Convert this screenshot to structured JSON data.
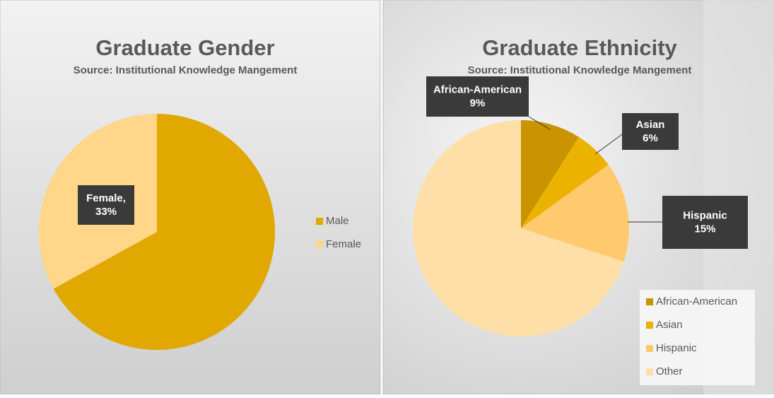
{
  "chart_data": [
    {
      "type": "pie",
      "title": "Graduate Gender",
      "subtitle": "Source: Institutional Knowledge Mangement",
      "categories": [
        "Male",
        "Female"
      ],
      "values": [
        67,
        33
      ],
      "colors": [
        "#e0a800",
        "#ffd68a"
      ],
      "value_labels": [
        null,
        "Female, 33%"
      ],
      "legend": "right"
    },
    {
      "type": "pie",
      "title": "Graduate Ethnicity",
      "subtitle": "Source: Institutional Knowledge Mangement",
      "categories": [
        "African-American",
        "Asian",
        "Hispanic",
        "Other"
      ],
      "values": [
        9,
        6,
        15,
        70
      ],
      "colors": [
        "#c99400",
        "#ebb300",
        "#ffca6e",
        "#ffdfa8"
      ],
      "value_labels": [
        "African-American 9%",
        "Asian 6%",
        "Hispanic 15%",
        null
      ],
      "legend": "bottom-right"
    }
  ]
}
